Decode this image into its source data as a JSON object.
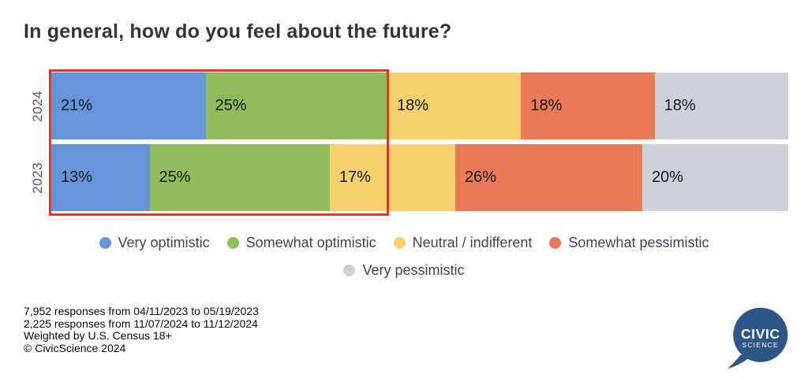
{
  "title": "In general, how do you feel about the future?",
  "chart_data": {
    "type": "bar",
    "variant": "horizontal-stacked",
    "categories": [
      "2024",
      "2023"
    ],
    "series": [
      {
        "name": "Very optimistic",
        "color": "#6495d9",
        "values": [
          21,
          13
        ]
      },
      {
        "name": "Somewhat optimistic",
        "color": "#92bd5c",
        "values": [
          25,
          25
        ]
      },
      {
        "name": "Neutral / indifferent",
        "color": "#f5d06c",
        "values": [
          18,
          17
        ]
      },
      {
        "name": "Somewhat pessimistic",
        "color": "#e97a57",
        "values": [
          18,
          26
        ]
      },
      {
        "name": "Very pessimistic",
        "color": "#ccd1d8",
        "values": [
          18,
          20
        ]
      }
    ],
    "value_labels": [
      [
        "21%",
        "25%",
        "18%",
        "18%",
        "18%"
      ],
      [
        "13%",
        "25%",
        "17%",
        "26%",
        "20%"
      ]
    ],
    "annotation": {
      "shape": "red-outline-rectangle",
      "color": "#e8352b",
      "note": "highlights the Very optimistic and Somewhat optimistic segments of both years"
    },
    "legend_position": "bottom-center",
    "grid": false
  },
  "legend": {
    "rows": [
      [
        {
          "label": "Very optimistic",
          "color": "#6495d9"
        },
        {
          "label": "Somewhat optimistic",
          "color": "#92bd5c"
        },
        {
          "label": "Neutral / indifferent",
          "color": "#f5d06c"
        },
        {
          "label": "Somewhat pessimistic",
          "color": "#e97a57"
        }
      ],
      [
        {
          "label": "Very pessimistic",
          "color": "#ccd1d8"
        }
      ]
    ]
  },
  "footer": {
    "lines": [
      "7,952 responses from 04/11/2023 to 05/19/2023",
      "2,225 responses from 11/07/2024 to 11/12/2024",
      "Weighted by U.S. Census 18+",
      "© CivicScience 2024"
    ]
  },
  "logo": {
    "line1": "CIVIC",
    "line2": "SCIENCE",
    "color": "#2d5586"
  }
}
